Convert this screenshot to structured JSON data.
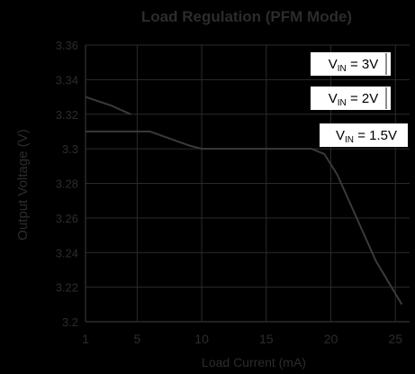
{
  "chart_data": {
    "type": "line",
    "title": "Load Regulation (PFM Mode)",
    "xlabel": "Load Current (mA)",
    "ylabel": "Output Voltage (V)",
    "x_tick_labels": [
      "1",
      "5",
      "10",
      "15",
      "20",
      "25"
    ],
    "y_tick_labels": [
      "3.36",
      "3.34",
      "3.32",
      "3.3",
      "3.28",
      "3.26",
      "3.24",
      "3.22",
      "3.2"
    ],
    "ylim": [
      3.2,
      3.36
    ],
    "grid": true,
    "series": [
      {
        "name": "V_IN = 3V",
        "x": [
          1,
          3,
          4.5
        ],
        "y": [
          3.33,
          3.325,
          3.32
        ]
      },
      {
        "name": "V_IN = 2V",
        "x": [
          1,
          6,
          9,
          10
        ],
        "y": [
          3.31,
          3.31,
          3.302,
          3.3
        ]
      },
      {
        "name": "V_IN = 1.5V",
        "x": [
          10,
          18.5,
          19.5,
          20.5,
          22,
          23.5,
          25.5
        ],
        "y": [
          3.3,
          3.3,
          3.297,
          3.285,
          3.26,
          3.235,
          3.21
        ]
      }
    ],
    "legend_labels": [
      {
        "main": "V",
        "sub": "IN",
        "rest": " = 3V"
      },
      {
        "main": "V",
        "sub": "IN",
        "rest": " = 2V"
      },
      {
        "main": "V",
        "sub": "IN",
        "rest": " = 1.5V"
      }
    ],
    "colors": {
      "background": "#000000",
      "grid": "#2b2b2b",
      "text": "#2c2c2c",
      "series": "#3a3a3a",
      "label_box": "#ffffff",
      "label_text": "#000000"
    }
  }
}
